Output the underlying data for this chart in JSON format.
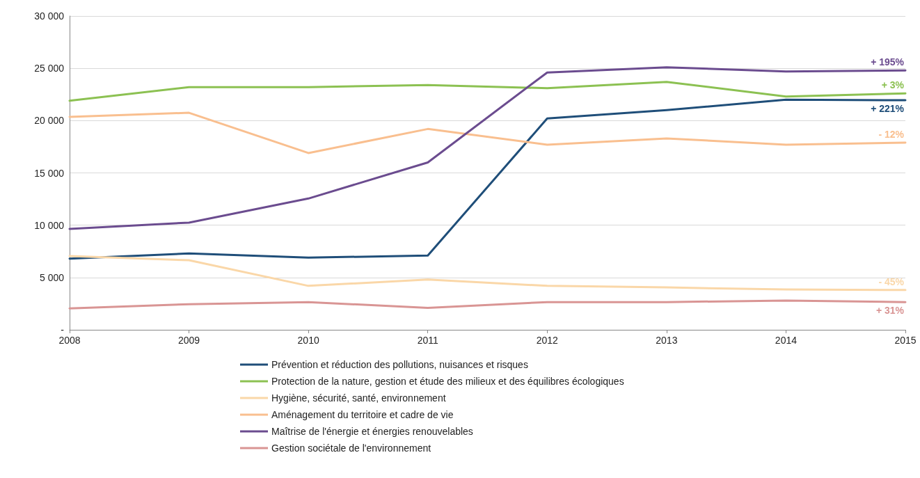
{
  "chart_data": {
    "type": "line",
    "categories": [
      "2008",
      "2009",
      "2010",
      "2011",
      "2012",
      "2013",
      "2014",
      "2015"
    ],
    "series": [
      {
        "name": "Prévention et réduction des pollutions, nuisances et risques",
        "color": "#1f4e79",
        "values": [
          6800,
          7300,
          6900,
          7100,
          20200,
          21000,
          22000,
          21950
        ]
      },
      {
        "name": "Protection de la nature, gestion et étude des milieux et des équilibres écologiques",
        "color": "#8cc152",
        "values": [
          21900,
          23200,
          23200,
          23400,
          23100,
          23700,
          22300,
          22600
        ]
      },
      {
        "name": "Hygiène, sécurité, santé, environnement",
        "color": "#fad7a8",
        "values": [
          7050,
          6650,
          4200,
          4800,
          4200,
          4050,
          3850,
          3800
        ]
      },
      {
        "name": "Aménagement du territoire et cadre de vie",
        "color": "#f9bf8f",
        "values": [
          20350,
          20750,
          16900,
          19200,
          17700,
          18300,
          17700,
          17900
        ]
      },
      {
        "name": "Maîtrise de l'énergie et énergies renouvelables",
        "color": "#6b4c8f",
        "values": [
          9650,
          10250,
          12550,
          16000,
          24600,
          25100,
          24700,
          24800
        ]
      },
      {
        "name": "Gestion sociétale de l'environnement",
        "color": "#d99594",
        "values": [
          2050,
          2450,
          2650,
          2100,
          2650,
          2650,
          2800,
          2650
        ]
      }
    ],
    "annotations": [
      {
        "text": "+ 221%",
        "x": "2015",
        "y": 21950
      },
      {
        "text": "+ 3%",
        "x": "2015",
        "y": 22600
      },
      {
        "text": "- 45%",
        "x": "2015",
        "y": 3800
      },
      {
        "text": "- 12%",
        "x": "2015",
        "y": 17900
      },
      {
        "text": "+ 195%",
        "x": "2015",
        "y": 24800
      },
      {
        "text": "+ 31%",
        "x": "2015",
        "y": 2650
      }
    ],
    "ylim": [
      0,
      30000
    ],
    "yticks": [
      {
        "value": 0,
        "label": "-"
      },
      {
        "value": 5000,
        "label": "5 000"
      },
      {
        "value": 10000,
        "label": "10 000"
      },
      {
        "value": 15000,
        "label": "15 000"
      },
      {
        "value": 20000,
        "label": "20 000"
      },
      {
        "value": 25000,
        "label": "25 000"
      },
      {
        "value": 30000,
        "label": "30 000"
      }
    ],
    "grid": "y",
    "legend": "bottom",
    "marker": "none",
    "line_style": "solid"
  }
}
